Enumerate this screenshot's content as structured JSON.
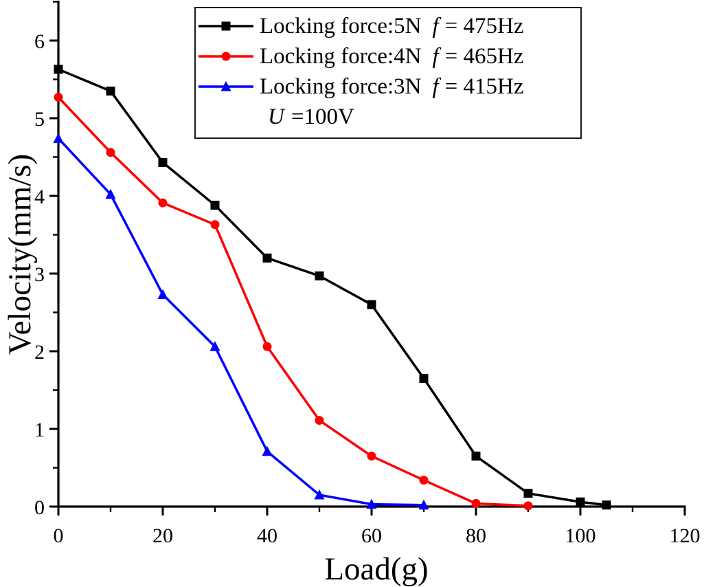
{
  "chart_data": {
    "type": "line",
    "title": "",
    "xlabel": "Load(g)",
    "ylabel": "Velocity(mm/s)",
    "xlim": [
      0,
      120
    ],
    "ylim": [
      0,
      6.5
    ],
    "x_major_ticks": [
      0,
      20,
      40,
      60,
      80,
      100,
      120
    ],
    "x_minor_ticks": [
      10,
      30,
      50,
      70,
      90,
      110
    ],
    "y_major_ticks": [
      0,
      1,
      2,
      3,
      4,
      5,
      6
    ],
    "y_minor_ticks": [
      0.5,
      1.5,
      2.5,
      3.5,
      4.5,
      5.5,
      6.5
    ],
    "grid": false,
    "legend_position": "top-center inside box",
    "axis_color": "#000000",
    "series": [
      {
        "name": "Locking force:5N f = 475Hz",
        "color": "#000000",
        "marker": "square",
        "x": [
          0,
          10,
          20,
          30,
          40,
          50,
          60,
          70,
          80,
          90,
          100,
          105
        ],
        "y": [
          5.63,
          5.35,
          4.43,
          3.88,
          3.2,
          2.97,
          2.6,
          1.65,
          0.65,
          0.17,
          0.06,
          0.02
        ]
      },
      {
        "name": "Locking force:4N f = 465Hz",
        "color": "#ff0000",
        "marker": "circle",
        "x": [
          0,
          10,
          20,
          30,
          40,
          50,
          60,
          70,
          80,
          90
        ],
        "y": [
          5.27,
          4.56,
          3.91,
          3.63,
          2.06,
          1.11,
          0.65,
          0.34,
          0.04,
          0.01
        ]
      },
      {
        "name": "Locking force:3N f = 415Hz",
        "color": "#0000ff",
        "marker": "triangle",
        "x": [
          0,
          10,
          20,
          30,
          40,
          50,
          60,
          70
        ],
        "y": [
          4.74,
          4.02,
          2.73,
          2.06,
          0.71,
          0.15,
          0.03,
          0.02
        ]
      }
    ],
    "annotation": "U =100V"
  },
  "legend": {
    "items": [
      {
        "label": "Locking force:5N",
        "f_symbol": "f",
        "freq": "= 475Hz"
      },
      {
        "label": "Locking force:4N",
        "f_symbol": "f",
        "freq": "= 465Hz"
      },
      {
        "label": "Locking force:3N",
        "f_symbol": "f",
        "freq": "= 415Hz"
      }
    ],
    "voltage_symbol": "U",
    "voltage_value": "=100V"
  }
}
